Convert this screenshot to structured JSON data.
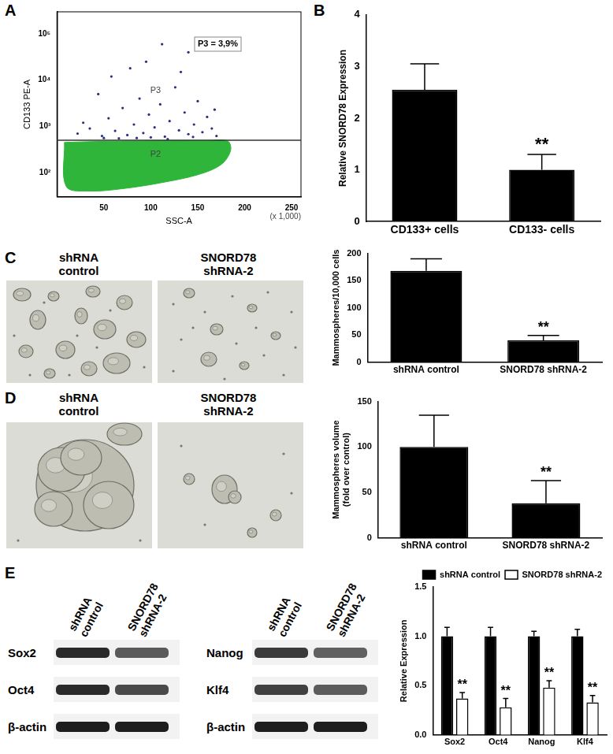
{
  "chart_data": [
    {
      "type": "scatter",
      "xlabel": "SSC-A",
      "ylabel": "CD133 PE-A",
      "log": "y",
      "grid": false,
      "xlim": [
        0,
        260
      ],
      "xticks": [
        50,
        100,
        150,
        200,
        250
      ],
      "ylim": [
        30,
        300000
      ],
      "yticks": [
        {
          "value": 100,
          "label": "10²"
        },
        {
          "value": 1000,
          "label": "10³"
        },
        {
          "value": 10000,
          "label": "10⁴"
        },
        {
          "value": 100000,
          "label": "10⁵"
        }
      ],
      "gate": 500,
      "series": [
        {
          "name": "P2",
          "type": "area",
          "color": "#2fb63a",
          "x": [
            8,
            40,
            80,
            120,
            160,
            182,
            185,
            175,
            150,
            110,
            70,
            35,
            10,
            8
          ],
          "values": [
            450,
            470,
            480,
            490,
            495,
            480,
            300,
            150,
            90,
            60,
            45,
            40,
            50,
            450
          ]
        },
        {
          "name": "P3",
          "type": "scatter",
          "color": "#2b2f7d",
          "x": [
            22,
            35,
            48,
            55,
            62,
            70,
            75,
            82,
            88,
            92,
            98,
            104,
            110,
            115,
            120,
            126,
            130,
            136,
            140,
            146,
            150,
            155,
            160,
            165,
            170,
            58,
            95,
            112,
            78,
            132,
            44,
            140,
            66,
            100,
            118,
            85,
            50,
            145,
            28,
            168
          ],
          "values": [
            700,
            900,
            620,
            1500,
            800,
            2500,
            650,
            1100,
            4000,
            720,
            1800,
            950,
            3000,
            600,
            1300,
            7000,
            820,
            2000,
            680,
            1100,
            3500,
            750,
            1600,
            900,
            620,
            12000,
            25000,
            60000,
            18000,
            15000,
            5000,
            40000,
            550,
            580,
            530,
            560,
            560,
            590,
            1200,
            2300
          ]
        }
      ],
      "annotations": [
        {
          "text": "P3 = 3,9%",
          "x": 150,
          "y": 60000
        },
        {
          "text": "P3",
          "x": 105,
          "y": 6000
        },
        {
          "text": "P2",
          "x": 105,
          "y": 250
        },
        {
          "text": "(x 1,000)"
        }
      ]
    },
    {
      "type": "bar",
      "ylabel": "Relative SNORD78 Expression",
      "grid": false,
      "categories": [
        "CD133+ cells",
        "CD133- cells"
      ],
      "values": [
        2.55,
        1.0
      ],
      "errors": [
        0.5,
        0.3
      ],
      "color": "#000000",
      "ylim": [
        0,
        4
      ],
      "yticks": [
        0,
        1,
        2,
        3,
        4
      ],
      "annotations": [
        {
          "text": "**",
          "category": "CD133- cells"
        }
      ]
    },
    {
      "type": "bar",
      "ylabel": "Mammospheres/10,000 cells",
      "grid": false,
      "categories": [
        "shRNA control",
        "SNORD78 shRNA-2"
      ],
      "values": [
        168,
        40
      ],
      "errors": [
        22,
        9
      ],
      "color": "#000000",
      "ylim": [
        0,
        200
      ],
      "yticks": [
        0,
        50,
        100,
        150,
        200
      ],
      "annotations": [
        {
          "text": "**",
          "category": "SNORD78 shRNA-2"
        }
      ]
    },
    {
      "type": "bar",
      "ylabel": [
        "Mammospheres volume",
        "(fold over control)"
      ],
      "grid": false,
      "categories": [
        "shRNA control",
        "SNORD78 shRNA-2"
      ],
      "values": [
        100,
        38
      ],
      "errors": [
        35,
        25
      ],
      "color": "#000000",
      "ylim": [
        0,
        150
      ],
      "yticks": [
        0,
        50,
        100,
        150
      ],
      "annotations": [
        {
          "text": "**",
          "category": "SNORD78 shRNA-2"
        }
      ]
    },
    {
      "type": "bar",
      "ylabel": "Relative Expression",
      "grid": false,
      "legend": "top",
      "categories": [
        "Sox2",
        "Oct4",
        "Nanog",
        "Klf4"
      ],
      "series": [
        {
          "name": "shRNA control",
          "color": "#000000",
          "values": [
            1.0,
            1.0,
            1.0,
            1.0
          ],
          "errors": [
            0.09,
            0.09,
            0.05,
            0.07
          ]
        },
        {
          "name": "SNORD78 shRNA-2",
          "color": "#ffffff",
          "values": [
            0.37,
            0.28,
            0.48,
            0.33
          ],
          "errors": [
            0.06,
            0.09,
            0.07,
            0.07
          ]
        }
      ],
      "ylim": [
        0,
        1.5
      ],
      "yticks": [
        {
          "value": 0,
          "label": "0.0"
        },
        0.5,
        {
          "value": 1,
          "label": "1.0"
        },
        1.5
      ],
      "annotations": [
        {
          "text": "**",
          "category": "Sox2",
          "series": "SNORD78 shRNA-2"
        },
        {
          "text": "**",
          "category": "Oct4",
          "series": "SNORD78 shRNA-2"
        },
        {
          "text": "**",
          "category": "Nanog",
          "series": "SNORD78 shRNA-2"
        },
        {
          "text": "**",
          "category": "Klf4",
          "series": "SNORD78 shRNA-2"
        }
      ]
    }
  ],
  "figure": {
    "panel_labels": [
      "A",
      "B",
      "C",
      "D",
      "E"
    ],
    "micrographs": {
      "C": [
        "shRNA control",
        "SNORD78 shRNA-2"
      ],
      "D": [
        "shRNA control",
        "SNORD78 shRNA-2"
      ]
    },
    "blots": {
      "columns": [
        "shRNA control",
        "SNORD78 shRNA-2"
      ],
      "groups": [
        [
          "Sox2",
          "Oct4",
          "β-actin"
        ],
        [
          "Nanog",
          "Klf4",
          "β-actin"
        ]
      ]
    }
  }
}
